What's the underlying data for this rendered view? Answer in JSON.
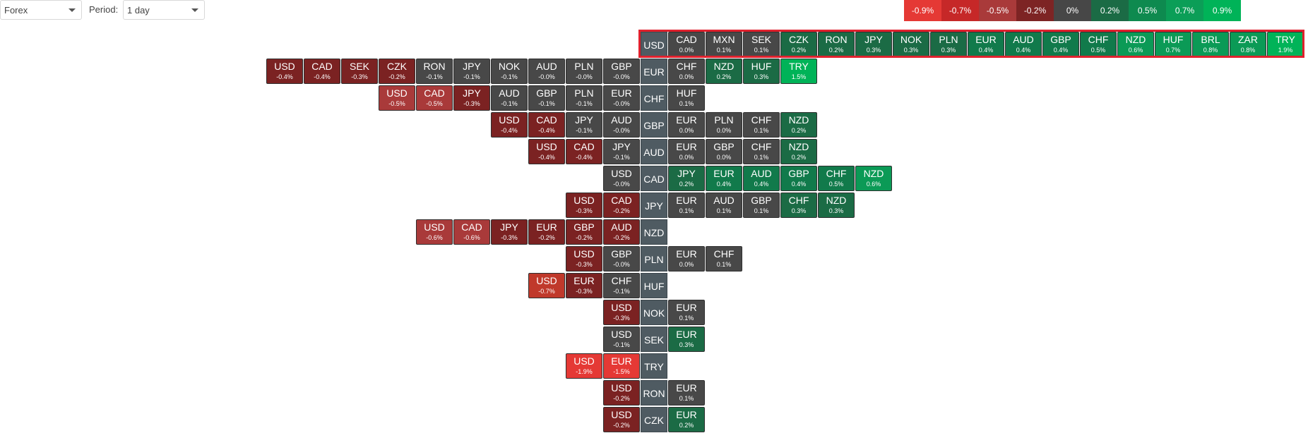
{
  "controls": {
    "market_value": "Forex",
    "period_label": "Period:",
    "period_value": "1 day"
  },
  "legend": [
    {
      "label": "-0.9%",
      "color": "#e53935"
    },
    {
      "label": "-0.7%",
      "color": "#c62828"
    },
    {
      "label": "-0.5%",
      "color": "#a93a3a"
    },
    {
      "label": "-0.2%",
      "color": "#7d2424"
    },
    {
      "label": "0%",
      "color": "#474747"
    },
    {
      "label": "0.2%",
      "color": "#1b6b45"
    },
    {
      "label": "0.5%",
      "color": "#0e8a4f"
    },
    {
      "label": "0.7%",
      "color": "#0b9e57"
    },
    {
      "label": "0.9%",
      "color": "#00b358"
    }
  ],
  "rows": [
    {
      "base": "USD",
      "left": [],
      "right": [
        [
          "CAD",
          "0.0%"
        ],
        [
          "MXN",
          "0.1%"
        ],
        [
          "SEK",
          "0.1%"
        ],
        [
          "CZK",
          "0.2%"
        ],
        [
          "RON",
          "0.2%"
        ],
        [
          "JPY",
          "0.3%"
        ],
        [
          "NOK",
          "0.3%"
        ],
        [
          "PLN",
          "0.3%"
        ],
        [
          "EUR",
          "0.4%"
        ],
        [
          "AUD",
          "0.4%"
        ],
        [
          "GBP",
          "0.4%"
        ],
        [
          "CHF",
          "0.5%"
        ],
        [
          "NZD",
          "0.6%"
        ],
        [
          "HUF",
          "0.7%"
        ],
        [
          "BRL",
          "0.8%"
        ],
        [
          "ZAR",
          "0.8%"
        ],
        [
          "TRY",
          "1.9%"
        ]
      ]
    },
    {
      "base": "EUR",
      "left": [
        [
          "USD",
          "-0.4%"
        ],
        [
          "CAD",
          "-0.4%"
        ],
        [
          "SEK",
          "-0.3%"
        ],
        [
          "CZK",
          "-0.2%"
        ],
        [
          "RON",
          "-0.1%"
        ],
        [
          "JPY",
          "-0.1%"
        ],
        [
          "NOK",
          "-0.1%"
        ],
        [
          "AUD",
          "-0.0%"
        ],
        [
          "PLN",
          "-0.0%"
        ],
        [
          "GBP",
          "-0.0%"
        ]
      ],
      "right": [
        [
          "CHF",
          "0.0%"
        ],
        [
          "NZD",
          "0.2%"
        ],
        [
          "HUF",
          "0.3%"
        ],
        [
          "TRY",
          "1.5%"
        ]
      ]
    },
    {
      "base": "CHF",
      "left": [
        [
          "USD",
          "-0.5%"
        ],
        [
          "CAD",
          "-0.5%"
        ],
        [
          "JPY",
          "-0.3%"
        ],
        [
          "AUD",
          "-0.1%"
        ],
        [
          "GBP",
          "-0.1%"
        ],
        [
          "PLN",
          "-0.1%"
        ],
        [
          "EUR",
          "-0.0%"
        ]
      ],
      "right": [
        [
          "HUF",
          "0.1%"
        ]
      ]
    },
    {
      "base": "GBP",
      "left": [
        [
          "USD",
          "-0.4%"
        ],
        [
          "CAD",
          "-0.4%"
        ],
        [
          "JPY",
          "-0.1%"
        ],
        [
          "AUD",
          "-0.0%"
        ]
      ],
      "right": [
        [
          "EUR",
          "0.0%"
        ],
        [
          "PLN",
          "0.0%"
        ],
        [
          "CHF",
          "0.1%"
        ],
        [
          "NZD",
          "0.2%"
        ]
      ]
    },
    {
      "base": "AUD",
      "left": [
        [
          "USD",
          "-0.4%"
        ],
        [
          "CAD",
          "-0.4%"
        ],
        [
          "JPY",
          "-0.1%"
        ]
      ],
      "right": [
        [
          "EUR",
          "0.0%"
        ],
        [
          "GBP",
          "0.0%"
        ],
        [
          "CHF",
          "0.1%"
        ],
        [
          "NZD",
          "0.2%"
        ]
      ]
    },
    {
      "base": "CAD",
      "left": [
        [
          "USD",
          "-0.0%"
        ]
      ],
      "right": [
        [
          "JPY",
          "0.2%"
        ],
        [
          "EUR",
          "0.4%"
        ],
        [
          "AUD",
          "0.4%"
        ],
        [
          "GBP",
          "0.4%"
        ],
        [
          "CHF",
          "0.5%"
        ],
        [
          "NZD",
          "0.6%"
        ]
      ]
    },
    {
      "base": "JPY",
      "left": [
        [
          "USD",
          "-0.3%"
        ],
        [
          "CAD",
          "-0.2%"
        ]
      ],
      "right": [
        [
          "EUR",
          "0.1%"
        ],
        [
          "AUD",
          "0.1%"
        ],
        [
          "GBP",
          "0.1%"
        ],
        [
          "CHF",
          "0.3%"
        ],
        [
          "NZD",
          "0.3%"
        ]
      ]
    },
    {
      "base": "NZD",
      "left": [
        [
          "USD",
          "-0.6%"
        ],
        [
          "CAD",
          "-0.6%"
        ],
        [
          "JPY",
          "-0.3%"
        ],
        [
          "EUR",
          "-0.2%"
        ],
        [
          "GBP",
          "-0.2%"
        ],
        [
          "AUD",
          "-0.2%"
        ]
      ],
      "right": []
    },
    {
      "base": "PLN",
      "left": [
        [
          "USD",
          "-0.3%"
        ],
        [
          "GBP",
          "-0.0%"
        ]
      ],
      "right": [
        [
          "EUR",
          "0.0%"
        ],
        [
          "CHF",
          "0.1%"
        ]
      ]
    },
    {
      "base": "HUF",
      "left": [
        [
          "USD",
          "-0.7%"
        ],
        [
          "EUR",
          "-0.3%"
        ],
        [
          "CHF",
          "-0.1%"
        ]
      ],
      "right": []
    },
    {
      "base": "NOK",
      "left": [
        [
          "USD",
          "-0.3%"
        ]
      ],
      "right": [
        [
          "EUR",
          "0.1%"
        ]
      ]
    },
    {
      "base": "SEK",
      "left": [
        [
          "USD",
          "-0.1%"
        ]
      ],
      "right": [
        [
          "EUR",
          "0.3%"
        ]
      ]
    },
    {
      "base": "TRY",
      "left": [
        [
          "USD",
          "-1.9%"
        ],
        [
          "EUR",
          "-1.5%"
        ]
      ],
      "right": []
    },
    {
      "base": "RON",
      "left": [
        [
          "USD",
          "-0.2%"
        ]
      ],
      "right": [
        [
          "EUR",
          "0.1%"
        ]
      ]
    },
    {
      "base": "CZK",
      "left": [
        [
          "USD",
          "-0.2%"
        ]
      ],
      "right": [
        [
          "EUR",
          "0.2%"
        ]
      ]
    }
  ]
}
